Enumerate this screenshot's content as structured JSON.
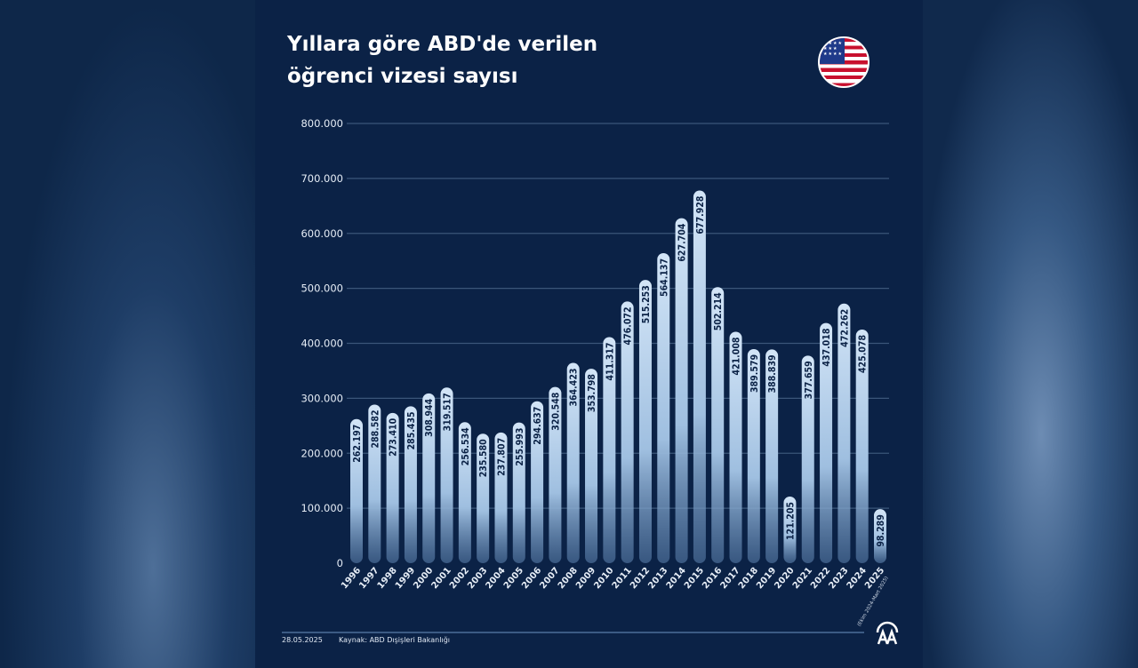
{
  "header": {
    "title_line1": "Yıllara göre ABD'de verilen",
    "title_line2": "öğrenci vizesi sayısı",
    "flag_icon": "us-flag"
  },
  "footer": {
    "date": "28.05.2025",
    "source": "Kaynak: ABD Dışişleri Bakanlığı",
    "logo": "AA"
  },
  "colors": {
    "background": "#0b2246",
    "bar_top": "#c9def3",
    "grid": "#3b5679",
    "label": "#0b2246"
  },
  "chart_data": {
    "type": "bar",
    "title": "Yıllara göre ABD'de verilen öğrenci vizesi sayısı",
    "categories": [
      "1996",
      "1997",
      "1998",
      "1999",
      "2000",
      "2001",
      "2002",
      "2003",
      "2004",
      "2005",
      "2006",
      "2007",
      "2008",
      "2009",
      "2010",
      "2011",
      "2012",
      "2013",
      "2014",
      "2015",
      "2016",
      "2017",
      "2018",
      "2019",
      "2020",
      "2021",
      "2022",
      "2023",
      "2024",
      "2025"
    ],
    "category_notes": {
      "2025": "(Ekim 2024-Mart 2025)"
    },
    "values": [
      262197,
      288582,
      273410,
      285435,
      308944,
      319517,
      256534,
      235580,
      237807,
      255993,
      294637,
      320548,
      364423,
      353798,
      411317,
      476072,
      515253,
      564137,
      627704,
      677928,
      502214,
      421008,
      389579,
      388839,
      121205,
      377659,
      437018,
      472262,
      425078,
      98289
    ],
    "value_labels": [
      "262.197",
      "288.582",
      "273.410",
      "285.435",
      "308.944",
      "319.517",
      "256.534",
      "235.580",
      "237.807",
      "255.993",
      "294.637",
      "320.548",
      "364.423",
      "353.798",
      "411.317",
      "476.072",
      "515.253",
      "564.137",
      "627.704",
      "677.928",
      "502.214",
      "421.008",
      "389.579",
      "388.839",
      "121.205",
      "377.659",
      "437.018",
      "472.262",
      "425.078",
      "98.289"
    ],
    "ylim": [
      0,
      800000
    ],
    "yticks": [
      0,
      100000,
      200000,
      300000,
      400000,
      500000,
      600000,
      700000,
      800000
    ],
    "ytick_labels": [
      "0",
      "100.000",
      "200.000",
      "300.000",
      "400.000",
      "500.000",
      "600.000",
      "700.000",
      "800.000"
    ],
    "grid": true,
    "legend": "none"
  }
}
